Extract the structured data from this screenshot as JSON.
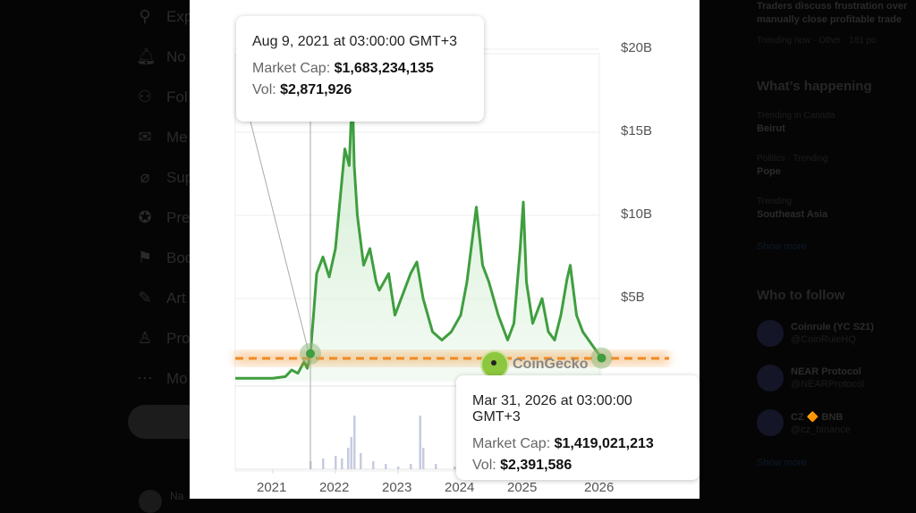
{
  "sidebar": {
    "items": [
      {
        "icon": "search-icon",
        "glyph": "⚲",
        "label": "Exp"
      },
      {
        "icon": "bell-icon",
        "glyph": "🔔︎",
        "label": "No"
      },
      {
        "icon": "follow-icon",
        "glyph": "⚇",
        "label": "Fol"
      },
      {
        "icon": "mail-icon",
        "glyph": "✉",
        "label": "Me"
      },
      {
        "icon": "grok-icon",
        "glyph": "⌀",
        "label": "Sup"
      },
      {
        "icon": "verified-icon",
        "glyph": "✪",
        "label": "Pre"
      },
      {
        "icon": "bookmark-icon",
        "glyph": "⚑",
        "label": "Boo"
      },
      {
        "icon": "article-icon",
        "glyph": "✎",
        "label": "Art"
      },
      {
        "icon": "profile-icon",
        "glyph": "♙",
        "label": "Pro"
      },
      {
        "icon": "more-icon",
        "glyph": "⋯",
        "label": "Mo"
      }
    ],
    "account_name": "Na"
  },
  "right": {
    "news_title_1": "Traders discuss frustration over",
    "news_title_2": "manually close profitable trade",
    "news_meta": "Trending now · Other · 181 po",
    "happening_title": "What’s happening",
    "trends": [
      {
        "context": "Trending in Canada",
        "name": "Beirut"
      },
      {
        "context": "Politics · Trending",
        "name": "Pope"
      },
      {
        "context": "Trending",
        "name": "Southeast Asia"
      }
    ],
    "show_more": "Show more",
    "follow_title": "Who to follow",
    "follow": [
      {
        "name": "Coinrule (YC S21)",
        "handle": "@CoinRuleHQ"
      },
      {
        "name": "NEAR Protocol",
        "handle": "@NEARProtocol"
      },
      {
        "name": "CZ 🔶 BNB",
        "handle": "@cz_binance"
      }
    ],
    "show_more_2": "Show more"
  },
  "tooltip1": {
    "date": "Aug 9, 2021 at 03:00:00 GMT+3",
    "cap_label": "Market Cap:",
    "cap": "$1,683,234,135",
    "vol_label": "Vol:",
    "vol": "$2,871,926"
  },
  "tooltip2": {
    "date": "Mar 31, 2026 at 03:00:00 GMT+3",
    "cap_label": "Market Cap:",
    "cap": "$1,419,021,213",
    "vol_label": "Vol:",
    "vol": "$2,391,586"
  },
  "watermark": "CoinGecko",
  "chart_data": {
    "type": "line",
    "title": "",
    "xlabel": "",
    "ylabel": "Market Cap",
    "x_ticks": [
      "2021",
      "2022",
      "2023",
      "2024",
      "2025",
      "2026"
    ],
    "y_ticks": [
      "$5B",
      "$10B",
      "$15B",
      "$20B"
    ],
    "ylim": [
      0,
      20
    ],
    "xlim": [
      2020.4,
      2026.3
    ],
    "reference_line": 1.4,
    "color": "#3f9e3f",
    "ref_color": "#f08a24",
    "series": [
      {
        "name": "Market Cap ($B)",
        "x": [
          2020.4,
          2021.0,
          2021.2,
          2021.3,
          2021.4,
          2021.5,
          2021.55,
          2021.6,
          2021.65,
          2021.7,
          2021.8,
          2021.9,
          2022.0,
          2022.1,
          2022.15,
          2022.22,
          2022.27,
          2022.3,
          2022.35,
          2022.45,
          2022.55,
          2022.65,
          2022.7,
          2022.85,
          2022.95,
          2023.05,
          2023.2,
          2023.3,
          2023.4,
          2023.55,
          2023.7,
          2023.85,
          2024.0,
          2024.1,
          2024.2,
          2024.25,
          2024.35,
          2024.45,
          2024.6,
          2024.75,
          2024.85,
          2024.95,
          2025.0,
          2025.05,
          2025.15,
          2025.3,
          2025.4,
          2025.5,
          2025.6,
          2025.7,
          2025.75,
          2025.85,
          2025.95,
          2026.1,
          2026.25
        ],
        "y": [
          0.2,
          0.2,
          0.3,
          0.7,
          0.5,
          1.2,
          0.8,
          1.68,
          4,
          6.5,
          7.5,
          6.3,
          8,
          12,
          14,
          13,
          17.5,
          13,
          10,
          7,
          8,
          6,
          5.5,
          6.5,
          4,
          5,
          6.5,
          7.2,
          5,
          3,
          2.5,
          3,
          4,
          6,
          9,
          10.5,
          7,
          6,
          4,
          2.5,
          3.5,
          8,
          10.8,
          6,
          3.5,
          5,
          3,
          2.5,
          4,
          6.2,
          7,
          4,
          3,
          2.2,
          1.42
        ]
      }
    ],
    "volume": {
      "name": "Vol",
      "x": [
        2021.6,
        2021.8,
        2022.0,
        2022.1,
        2022.2,
        2022.25,
        2022.3,
        2022.4,
        2022.6,
        2022.8,
        2023.0,
        2023.2,
        2023.35,
        2023.4,
        2023.6,
        2023.9,
        2024.1,
        2024.3,
        2024.6,
        2024.9,
        2025.0,
        2025.3,
        2025.7,
        2026.0
      ],
      "values": [
        3,
        4,
        5,
        4,
        8,
        12,
        20,
        6,
        3,
        2,
        1,
        2,
        20,
        8,
        2,
        1,
        2,
        3,
        1,
        2,
        3,
        1,
        2,
        1
      ]
    }
  }
}
